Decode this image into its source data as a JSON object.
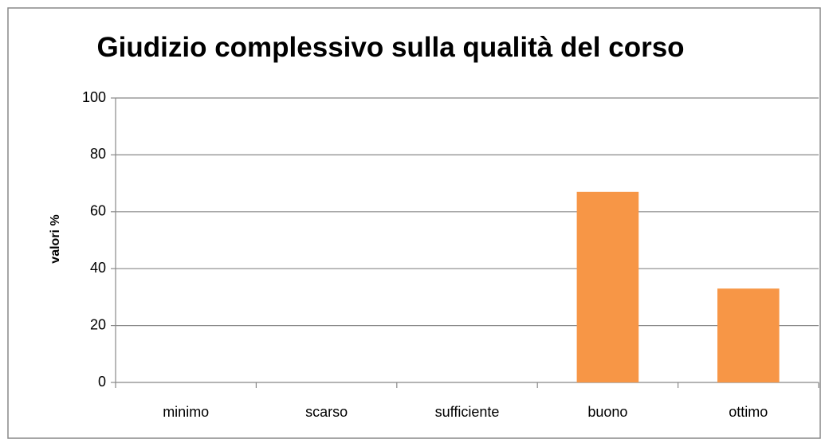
{
  "chart_data": {
    "type": "bar",
    "title": "Giudizio complessivo sulla qualità del corso",
    "y_label": "valori %",
    "categories": [
      "minimo",
      "scarso",
      "sufficiente",
      "buono",
      "ottimo"
    ],
    "values": [
      0,
      0,
      0,
      67,
      33
    ],
    "color": "#f79646",
    "ylim": [
      0,
      100
    ],
    "yticks": [
      0,
      20,
      40,
      60,
      80,
      100
    ],
    "grid": true
  }
}
